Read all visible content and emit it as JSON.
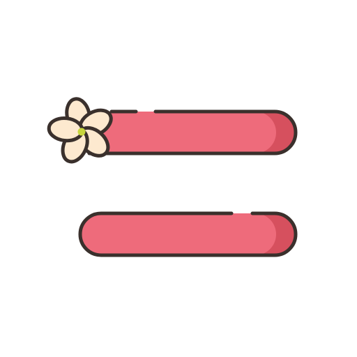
{
  "icon": {
    "name": "bobby-pins-with-flower",
    "colors": {
      "background": "#ffffff",
      "outline": "#3a302c",
      "pin_fill": "#ee6b7b",
      "pin_shade": "#d6505e",
      "petal_fill": "#fde9cf",
      "flower_center": "#c7d63c"
    }
  }
}
